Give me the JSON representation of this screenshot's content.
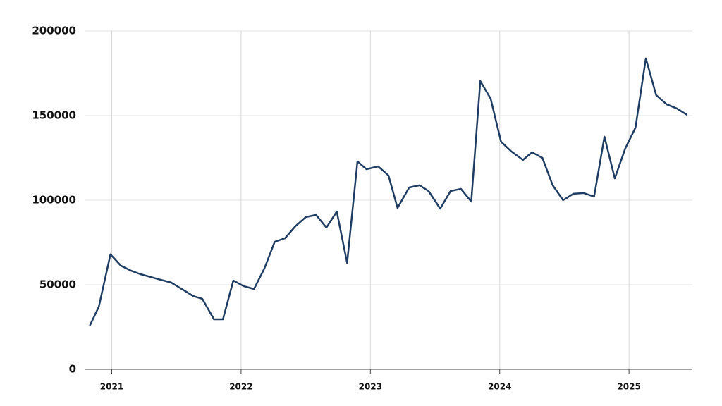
{
  "chart_data": {
    "type": "line",
    "x": [
      2020.83,
      2020.9,
      2020.99,
      2021.07,
      2021.15,
      2021.22,
      2021.3,
      2021.38,
      2021.46,
      2021.55,
      2021.63,
      2021.7,
      2021.79,
      2021.86,
      2021.94,
      2022.02,
      2022.1,
      2022.18,
      2022.26,
      2022.34,
      2022.42,
      2022.5,
      2022.58,
      2022.66,
      2022.74,
      2022.82,
      2022.9,
      2022.97,
      2023.06,
      2023.14,
      2023.21,
      2023.3,
      2023.38,
      2023.45,
      2023.54,
      2023.62,
      2023.7,
      2023.78,
      2023.85,
      2023.93,
      2024.01,
      2024.09,
      2024.18,
      2024.25,
      2024.33,
      2024.41,
      2024.49,
      2024.57,
      2024.65,
      2024.73,
      2024.81,
      2024.89,
      2024.97,
      2025.05,
      2025.13,
      2025.21,
      2025.29,
      2025.37,
      2025.45
    ],
    "series": [
      {
        "color": "#1f3d63",
        "values": [
          25800,
          37000,
          68000,
          61300,
          58300,
          56300,
          54600,
          52900,
          51300,
          47100,
          43300,
          41700,
          29600,
          29600,
          52500,
          49200,
          47500,
          59600,
          75400,
          77500,
          84600,
          90000,
          91300,
          83800,
          93300,
          62900,
          122900,
          118300,
          120000,
          114600,
          95400,
          107500,
          108800,
          105400,
          95000,
          105400,
          106700,
          99200,
          170400,
          160000,
          134600,
          128800,
          123800,
          128300,
          125000,
          108800,
          100000,
          103800,
          104200,
          102100,
          137500,
          112900,
          130400,
          142900,
          183800,
          162100,
          156700,
          154200,
          150400
        ]
      }
    ],
    "xlim": [
      2020.79,
      2025.49
    ],
    "xticks": [
      2021,
      2022,
      2023,
      2024,
      2025
    ],
    "ylim": [
      0,
      200000
    ],
    "yticks": [
      0,
      50000,
      100000,
      150000,
      200000
    ],
    "grid": true
  }
}
